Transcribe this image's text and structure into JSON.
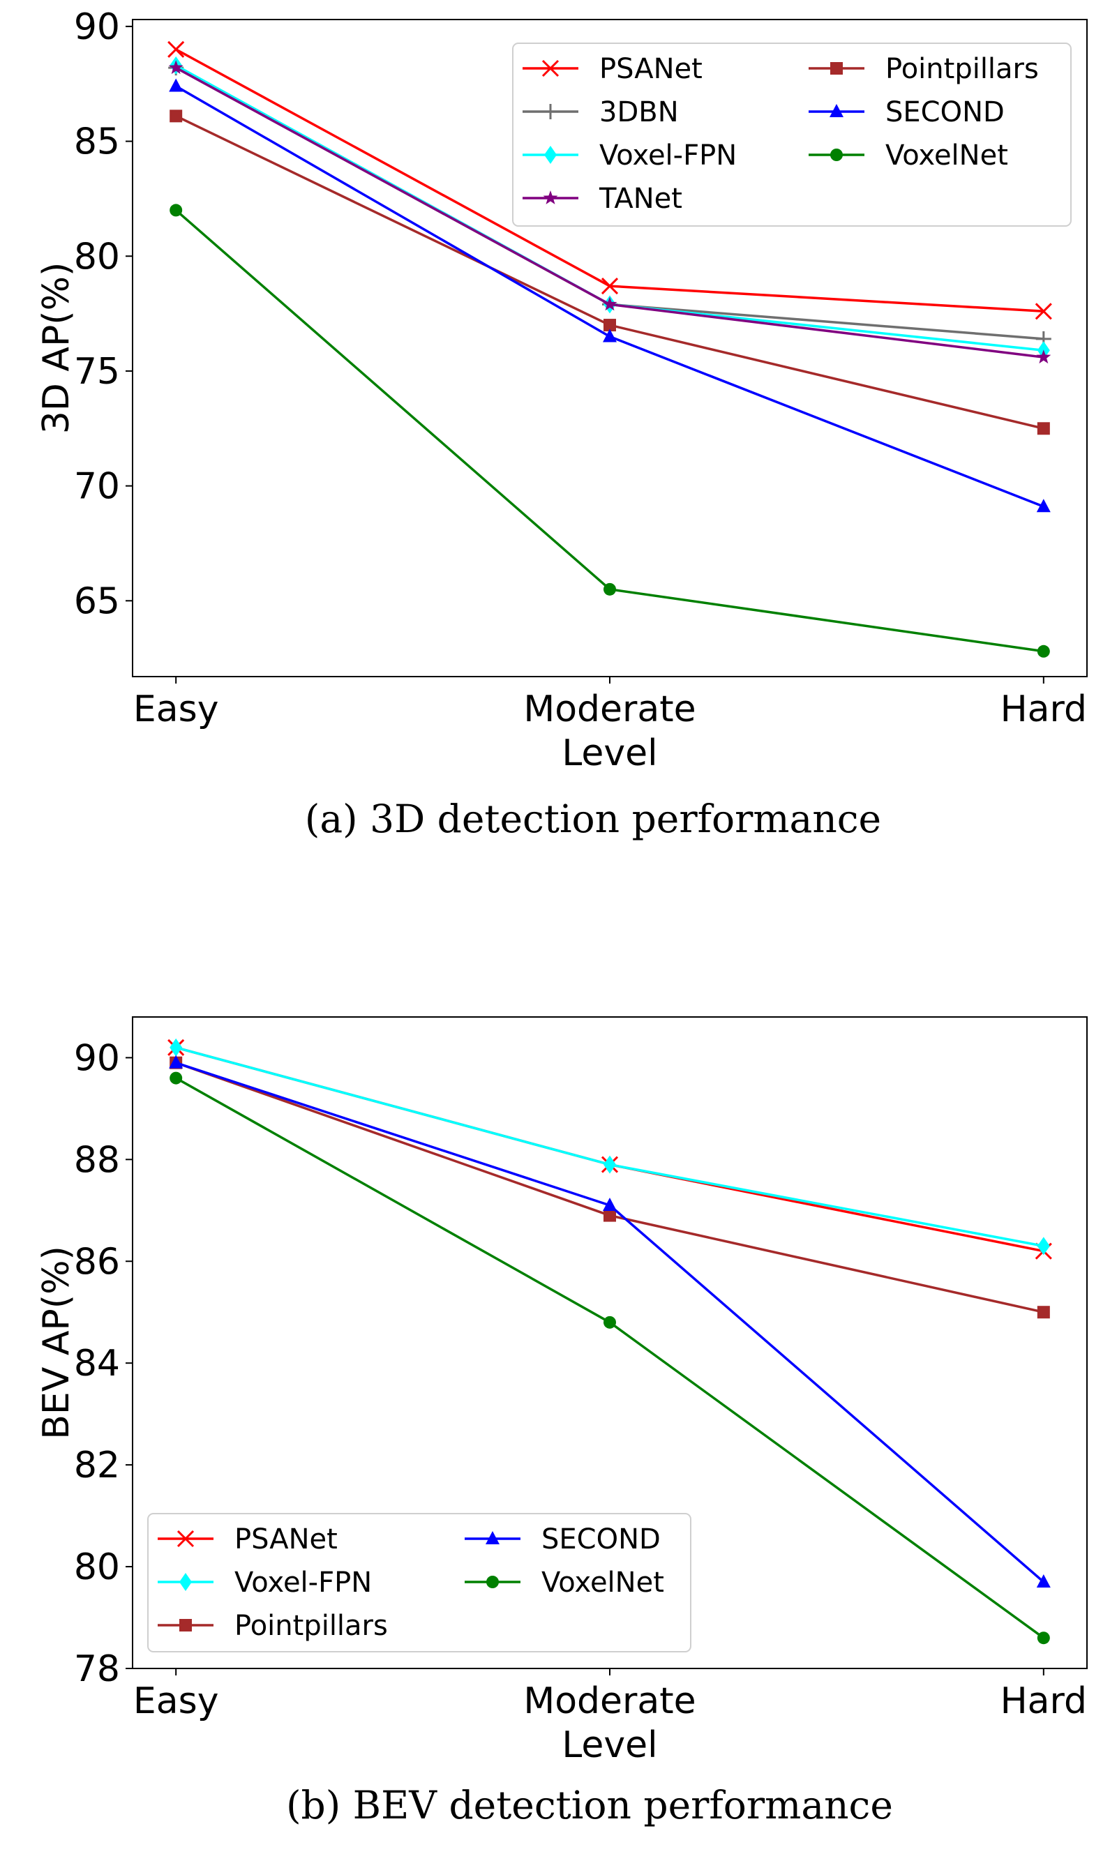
{
  "figure": {
    "charts": [
      {
        "id": "3d",
        "caption": "(a)  3D detection performance",
        "legend_position": "top-right"
      },
      {
        "id": "bev",
        "caption": "(b)  BEV detection performance",
        "legend_position": "bottom-left"
      }
    ]
  },
  "chart_data": [
    {
      "type": "line",
      "title": "",
      "xlabel": "Level",
      "ylabel": "3D AP(%)",
      "categories": [
        "Easy",
        "Moderate",
        "Hard"
      ],
      "ylim": [
        61.7,
        90.3
      ],
      "yticks": [
        65,
        70,
        75,
        80,
        85,
        90
      ],
      "grid": false,
      "series": [
        {
          "name": "PSANet",
          "color": "#ff0000",
          "marker": "x",
          "values": [
            89.0,
            78.7,
            77.6
          ]
        },
        {
          "name": "3DBN",
          "color": "#6f6f6f",
          "marker": "plus",
          "values": [
            88.2,
            77.9,
            76.4
          ]
        },
        {
          "name": "Voxel-FPN",
          "color": "#00ffff",
          "marker": "diamond",
          "values": [
            88.3,
            77.9,
            75.9
          ]
        },
        {
          "name": "TANet",
          "color": "#800080",
          "marker": "star",
          "values": [
            88.2,
            77.9,
            75.6
          ]
        },
        {
          "name": "Pointpillars",
          "color": "#a52a2a",
          "marker": "square",
          "values": [
            86.1,
            77.0,
            72.5
          ]
        },
        {
          "name": "SECOND",
          "color": "#0000ff",
          "marker": "triangle",
          "values": [
            87.4,
            76.5,
            69.1
          ]
        },
        {
          "name": "VoxelNet",
          "color": "#008000",
          "marker": "circle",
          "values": [
            82.0,
            65.5,
            62.8
          ]
        }
      ]
    },
    {
      "type": "line",
      "title": "",
      "xlabel": "Level",
      "ylabel": "BEV AP(%)",
      "categories": [
        "Easy",
        "Moderate",
        "Hard"
      ],
      "ylim": [
        78.0,
        90.8
      ],
      "yticks": [
        78,
        80,
        82,
        84,
        86,
        88,
        90
      ],
      "grid": false,
      "series": [
        {
          "name": "PSANet",
          "color": "#ff0000",
          "marker": "x",
          "values": [
            90.2,
            87.9,
            86.2
          ]
        },
        {
          "name": "Voxel-FPN",
          "color": "#00ffff",
          "marker": "diamond",
          "values": [
            90.2,
            87.9,
            86.3
          ]
        },
        {
          "name": "Pointpillars",
          "color": "#a52a2a",
          "marker": "square",
          "values": [
            89.9,
            86.9,
            85.0
          ]
        },
        {
          "name": "SECOND",
          "color": "#0000ff",
          "marker": "triangle",
          "values": [
            89.9,
            87.1,
            79.7
          ]
        },
        {
          "name": "VoxelNet",
          "color": "#008000",
          "marker": "circle",
          "values": [
            89.6,
            84.8,
            78.6
          ]
        }
      ]
    }
  ]
}
